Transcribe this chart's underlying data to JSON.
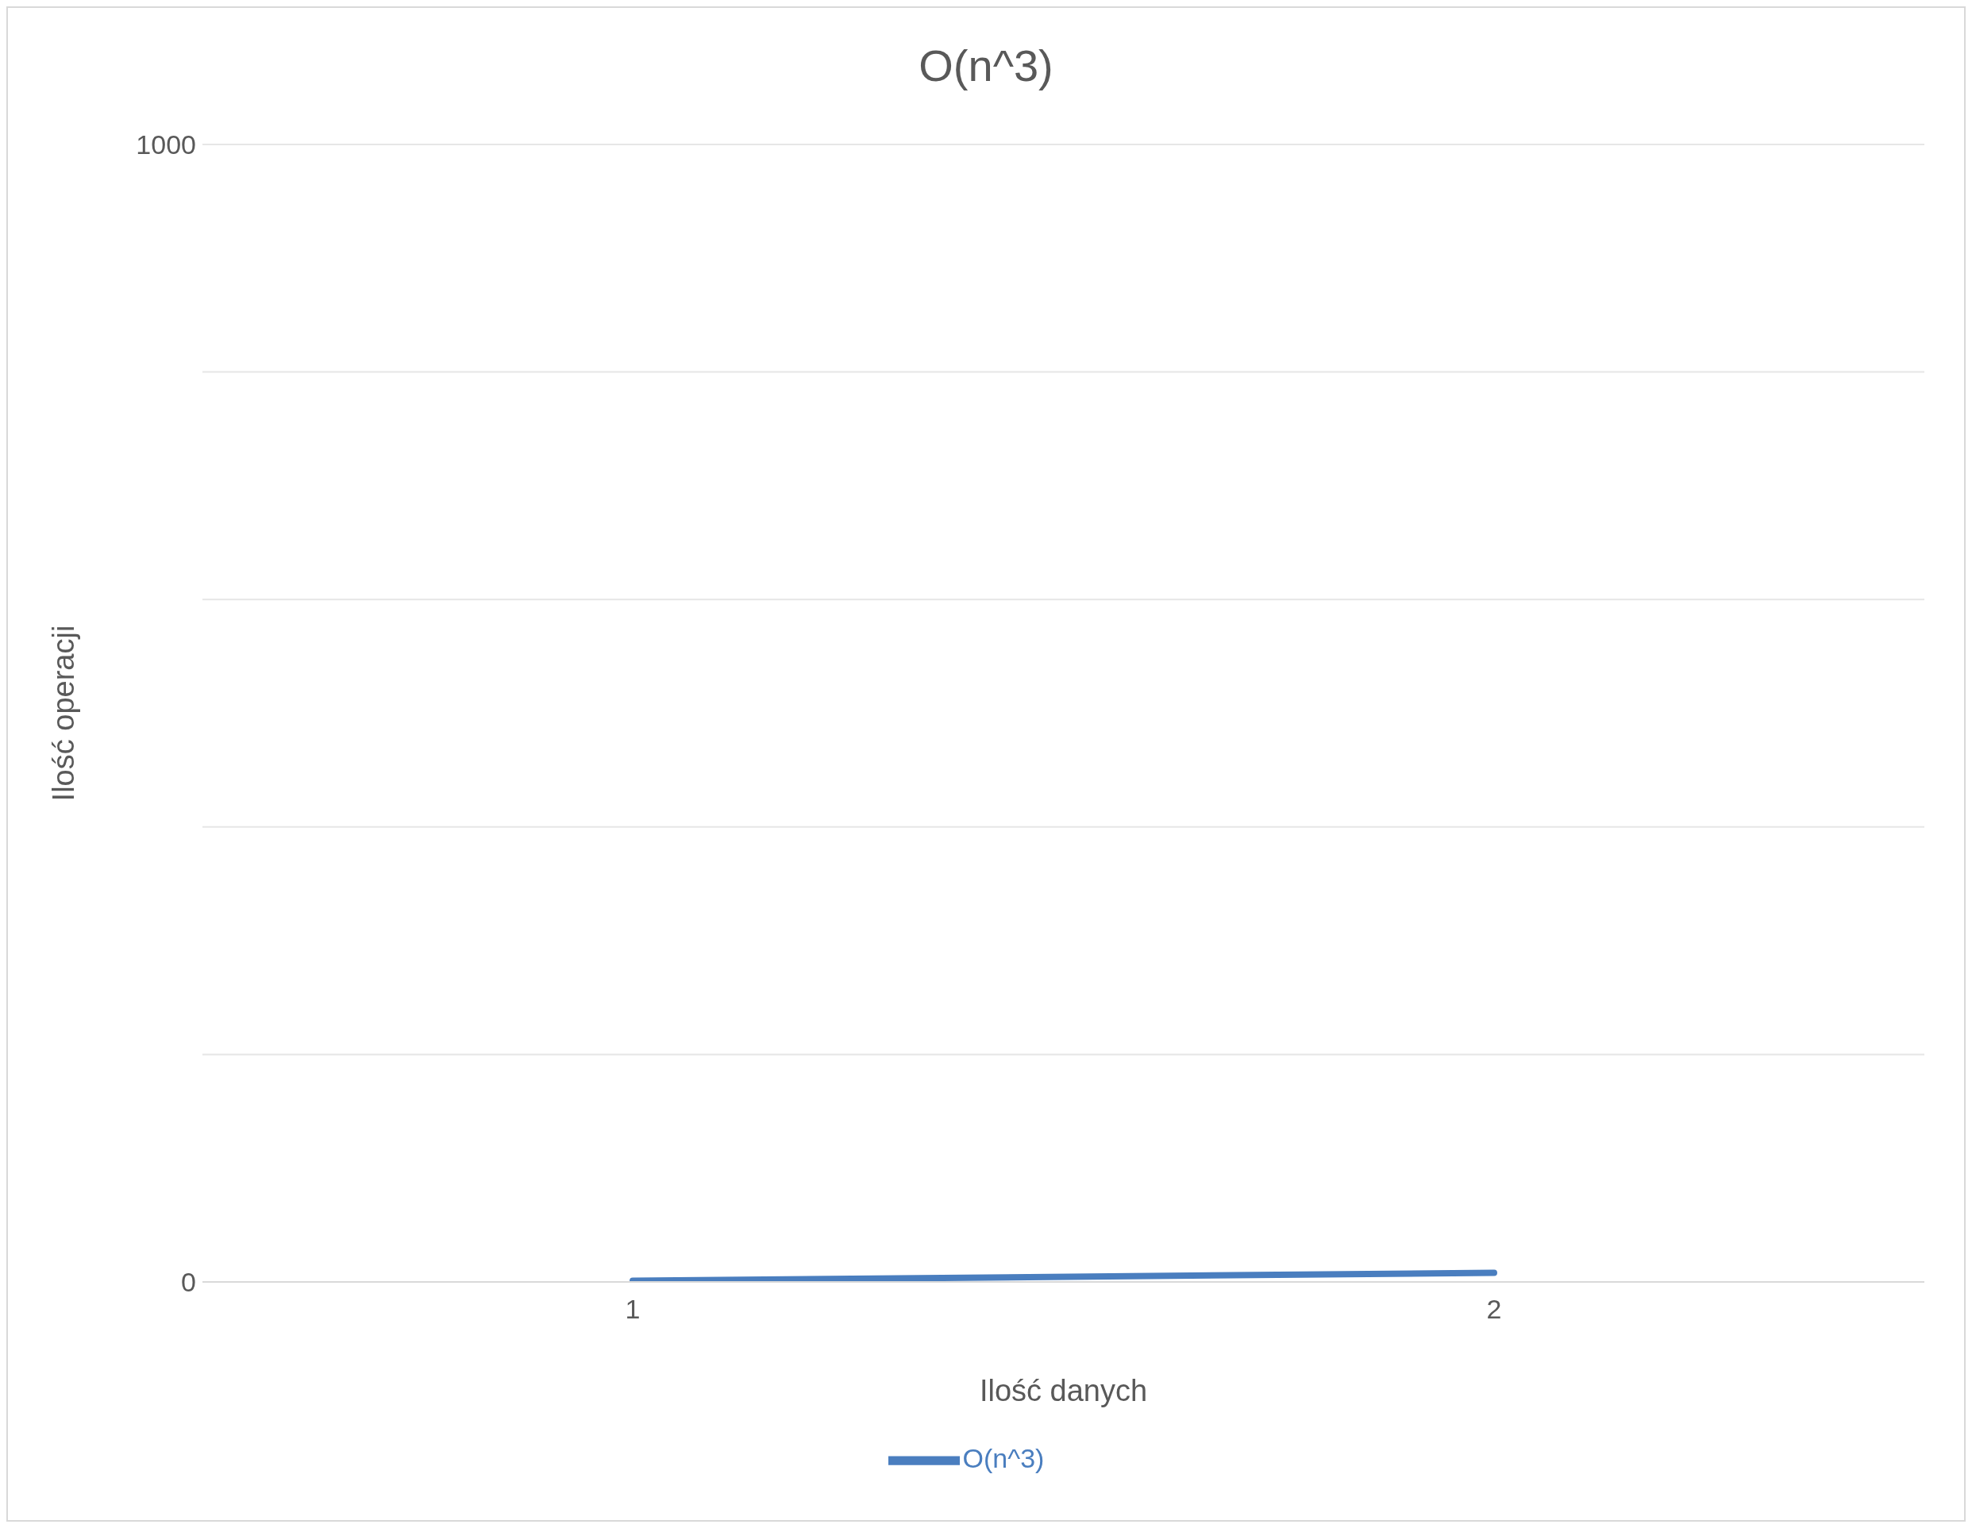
{
  "chart_data": {
    "type": "line",
    "title": "O(n^3)",
    "xlabel": "Ilość danych",
    "ylabel": "Ilość operacji",
    "categories": [
      "1",
      "2"
    ],
    "series": [
      {
        "name": "O(n^3)",
        "color": "#4a7ebf",
        "values": [
          1,
          8
        ]
      }
    ],
    "ylim": [
      0,
      1000
    ],
    "yticks": [
      0,
      {
        "value": 200,
        "label": null
      },
      {
        "value": 400,
        "label": null
      },
      {
        "value": 600,
        "label": null
      },
      {
        "value": 800,
        "label": null
      },
      1000
    ],
    "grid": "y",
    "legend": "bottom",
    "marker": "none",
    "line_style": "solid"
  }
}
